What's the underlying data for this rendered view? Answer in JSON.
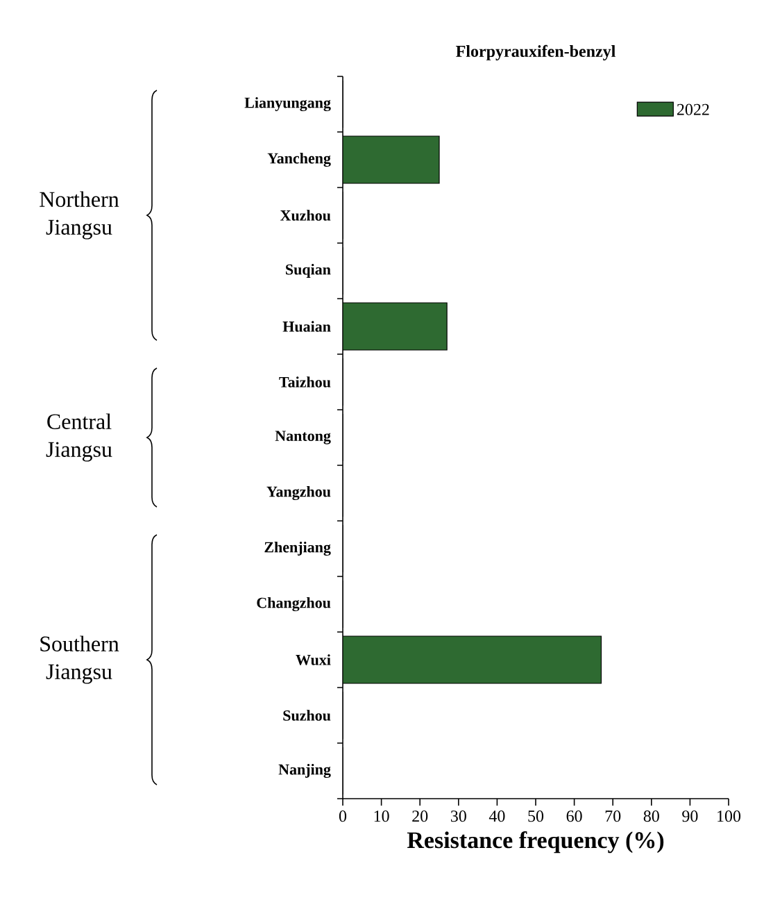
{
  "chart_data": {
    "type": "bar",
    "orientation": "horizontal",
    "title": "Florpyrauxifen-benzyl",
    "xlabel": "Resistance frequency (%)",
    "categories": [
      "Lianyungang",
      "Yancheng",
      "Xuzhou",
      "Suqian",
      "Huaian",
      "Taizhou",
      "Nantong",
      "Yangzhou",
      "Zhenjiang",
      "Changzhou",
      "Wuxi",
      "Suzhou",
      "Nanjing"
    ],
    "series": [
      {
        "name": "2022",
        "color": "#2e6a31",
        "values": [
          0,
          25,
          0,
          0,
          27,
          0,
          0,
          0,
          0,
          0,
          67,
          0,
          0
        ]
      }
    ],
    "xlim": [
      0,
      100
    ],
    "xticks": [
      0,
      10,
      20,
      30,
      40,
      50,
      60,
      70,
      80,
      90,
      100
    ],
    "grid": false,
    "legend": "top right",
    "annotations": [
      "Northern Jiangsu",
      "Central Jiangsu",
      "Southern Jiangsu"
    ]
  }
}
